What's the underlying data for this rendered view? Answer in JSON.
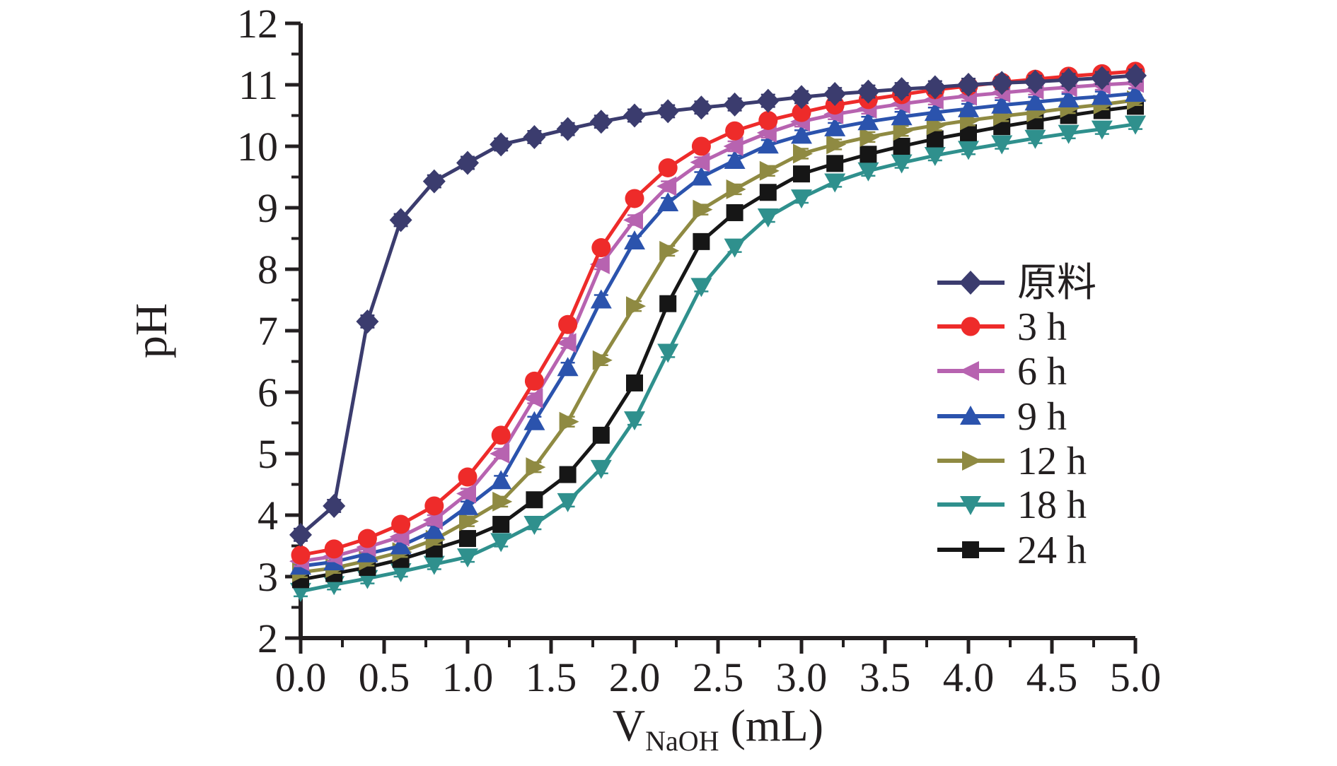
{
  "chart_data": {
    "type": "line",
    "title": "",
    "xlabel": {
      "main": "V",
      "sub": "NaOH",
      "unit": " (mL)"
    },
    "ylabel": "pH",
    "axes": {
      "x_min": 0.0,
      "x_max": 5.0,
      "y_min": 2,
      "y_max": 12,
      "x_major_step": 0.5,
      "x_minor_step": 0.25,
      "y_major_step": 1,
      "y_minor_step": 0.5,
      "x_tick_labels": [
        "0.0",
        "0.5",
        "1.0",
        "1.5",
        "2.0",
        "2.5",
        "3.0",
        "3.5",
        "4.0",
        "4.5",
        "5.0"
      ],
      "y_tick_labels": [
        "2",
        "3",
        "4",
        "5",
        "6",
        "7",
        "8",
        "9",
        "10",
        "11",
        "12"
      ],
      "grid": false,
      "axis_color": "#231f20"
    },
    "x": [
      0.0,
      0.2,
      0.4,
      0.6,
      0.8,
      1.0,
      1.2,
      1.4,
      1.6,
      1.8,
      2.0,
      2.2,
      2.4,
      2.6,
      2.8,
      3.0,
      3.2,
      3.4,
      3.6,
      3.8,
      4.0,
      4.2,
      4.4,
      4.6,
      4.8,
      5.0
    ],
    "series": [
      {
        "id": "raw",
        "label": "原料",
        "color": "#3b3c6e",
        "marker": "diamond",
        "error_bar_ph": 0.1,
        "values": [
          3.68,
          4.15,
          7.15,
          8.8,
          9.43,
          9.73,
          10.03,
          10.15,
          10.28,
          10.4,
          10.5,
          10.57,
          10.63,
          10.68,
          10.74,
          10.8,
          10.85,
          10.89,
          10.93,
          10.96,
          11.0,
          11.03,
          11.05,
          11.08,
          11.11,
          11.15
        ]
      },
      {
        "id": "3h",
        "label": "3 h",
        "color": "#ee2b2a",
        "marker": "circle",
        "error_bar_ph": 0.08,
        "values": [
          3.35,
          3.45,
          3.62,
          3.85,
          4.15,
          4.62,
          5.3,
          6.18,
          7.1,
          8.35,
          9.15,
          9.65,
          10.0,
          10.25,
          10.42,
          10.55,
          10.67,
          10.76,
          10.84,
          10.92,
          10.98,
          11.04,
          11.09,
          11.14,
          11.18,
          11.22
        ]
      },
      {
        "id": "6h",
        "label": "6 h",
        "color": "#b763b0",
        "marker": "triangle-left",
        "error_bar_ph": 0.08,
        "values": [
          3.25,
          3.33,
          3.48,
          3.65,
          3.92,
          4.35,
          5.0,
          5.9,
          6.8,
          8.08,
          8.8,
          9.35,
          9.74,
          10.0,
          10.22,
          10.4,
          10.52,
          10.61,
          10.69,
          10.76,
          10.82,
          10.87,
          10.92,
          10.96,
          11.0,
          11.03
        ]
      },
      {
        "id": "9h",
        "label": "9 h",
        "color": "#2b53ad",
        "marker": "triangle-up",
        "error_bar_ph": 0.08,
        "values": [
          3.17,
          3.24,
          3.37,
          3.5,
          3.75,
          4.14,
          4.56,
          5.52,
          6.4,
          7.5,
          8.46,
          9.08,
          9.5,
          9.77,
          10.02,
          10.18,
          10.3,
          10.4,
          10.48,
          10.55,
          10.61,
          10.67,
          10.72,
          10.77,
          10.81,
          10.86
        ]
      },
      {
        "id": "12h",
        "label": "12 h",
        "color": "#8f8a42",
        "marker": "triangle-right",
        "error_bar_ph": 0.08,
        "values": [
          3.07,
          3.14,
          3.26,
          3.4,
          3.6,
          3.9,
          4.22,
          4.78,
          5.52,
          6.52,
          7.4,
          8.3,
          8.97,
          9.3,
          9.6,
          9.88,
          10.03,
          10.15,
          10.25,
          10.34,
          10.42,
          10.49,
          10.55,
          10.62,
          10.68,
          10.75
        ]
      },
      {
        "id": "18h",
        "label": "18 h",
        "color": "#2f908d",
        "marker": "triangle-down",
        "error_bar_ph": 0.08,
        "values": [
          2.76,
          2.87,
          2.97,
          3.08,
          3.2,
          3.32,
          3.57,
          3.85,
          4.22,
          4.76,
          5.55,
          6.65,
          7.72,
          8.36,
          8.85,
          9.16,
          9.42,
          9.6,
          9.73,
          9.85,
          9.95,
          10.04,
          10.13,
          10.21,
          10.28,
          10.36
        ]
      },
      {
        "id": "24h",
        "label": "24 h",
        "color": "#161616",
        "marker": "square",
        "error_bar_ph": 0.08,
        "values": [
          2.95,
          3.05,
          3.15,
          3.28,
          3.45,
          3.62,
          3.85,
          4.25,
          4.66,
          5.3,
          6.15,
          7.44,
          8.45,
          8.92,
          9.25,
          9.55,
          9.72,
          9.87,
          10.0,
          10.12,
          10.22,
          10.32,
          10.41,
          10.5,
          10.58,
          10.65
        ]
      }
    ],
    "draw_order": [
      "18h",
      "24h",
      "12h",
      "9h",
      "6h",
      "3h",
      "raw"
    ],
    "legend": {
      "position": "right-middle",
      "order": [
        "raw",
        "3h",
        "6h",
        "9h",
        "12h",
        "18h",
        "24h"
      ]
    }
  }
}
